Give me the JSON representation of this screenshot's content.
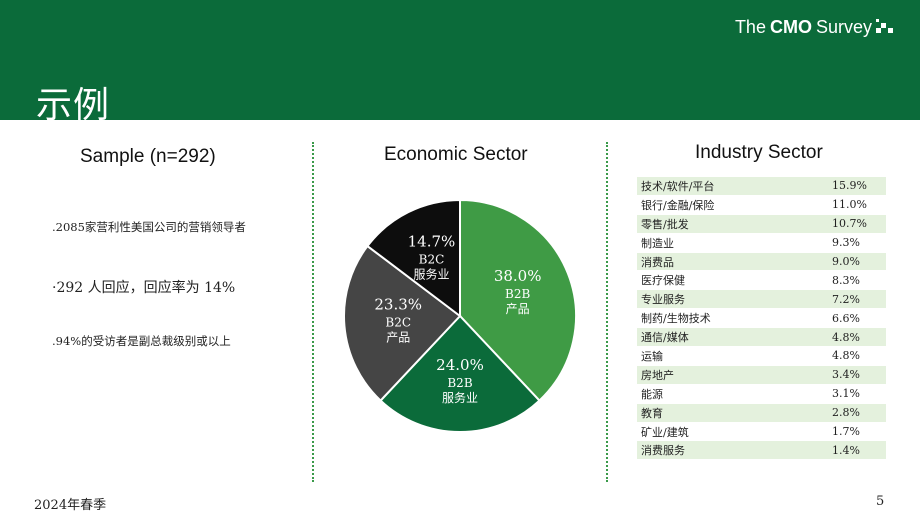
{
  "header": {
    "title": "示例",
    "logo": {
      "the": "The",
      "cmo": "CMO",
      "survey": "Survey"
    }
  },
  "sample": {
    "title": "Sample   (n=292)",
    "bullets": [
      ".2085家营利性美国公司的营销领导者",
      "·292 人回应，回应率为 14%",
      ".94%的受访者是副总裁级别或以上"
    ]
  },
  "economic_sector": {
    "title": "Economic Sector",
    "slices": [
      {
        "pct": "38.0%",
        "line1": "B2B",
        "line2": "产品"
      },
      {
        "pct": "24.0%",
        "line1": "B2B",
        "line2": "服务业"
      },
      {
        "pct": "23.3%",
        "line1": "B2C",
        "line2": "产品"
      },
      {
        "pct": "14.7%",
        "line1": "B2C",
        "line2": "服务业"
      }
    ]
  },
  "chart_data": {
    "type": "pie",
    "title": "Economic Sector",
    "categories": [
      "B2B 产品",
      "B2B 服务业",
      "B2C 产品",
      "B2C 服务业"
    ],
    "values": [
      38.0,
      24.0,
      23.3,
      14.7
    ],
    "colors": [
      "#3f9b45",
      "#0b6b3a",
      "#454545",
      "#0d0d0d"
    ]
  },
  "industry_sector": {
    "title": "Industry Sector",
    "rows": [
      {
        "name": "技术/软件/平台",
        "value": "15.9%"
      },
      {
        "name": "银行/金融/保险",
        "value": "11.0%"
      },
      {
        "name": "零售/批发",
        "value": "10.7%"
      },
      {
        "name": "制造业",
        "value": "9.3%"
      },
      {
        "name": "消费品",
        "value": "9.0%"
      },
      {
        "name": "医疗保健",
        "value": "8.3%"
      },
      {
        "name": "专业服务",
        "value": "7.2%"
      },
      {
        "name": "制药/生物技术",
        "value": "6.6%"
      },
      {
        "name": "通信/媒体",
        "value": "4.8%"
      },
      {
        "name": "运输",
        "value": "4.8%"
      },
      {
        "name": "房地产",
        "value": "3.4%"
      },
      {
        "name": "能源",
        "value": "3.1%"
      },
      {
        "name": "教育",
        "value": "2.8%"
      },
      {
        "name": "矿业/建筑",
        "value": "1.7%"
      },
      {
        "name": "消费服务",
        "value": "1.4%"
      }
    ]
  },
  "footer": {
    "date": "2024年春季",
    "page": "5"
  },
  "colors": {
    "brand_green": "#0b6b3a",
    "accent_green": "#3f9b45",
    "row_shade": "#e4f1dd"
  }
}
